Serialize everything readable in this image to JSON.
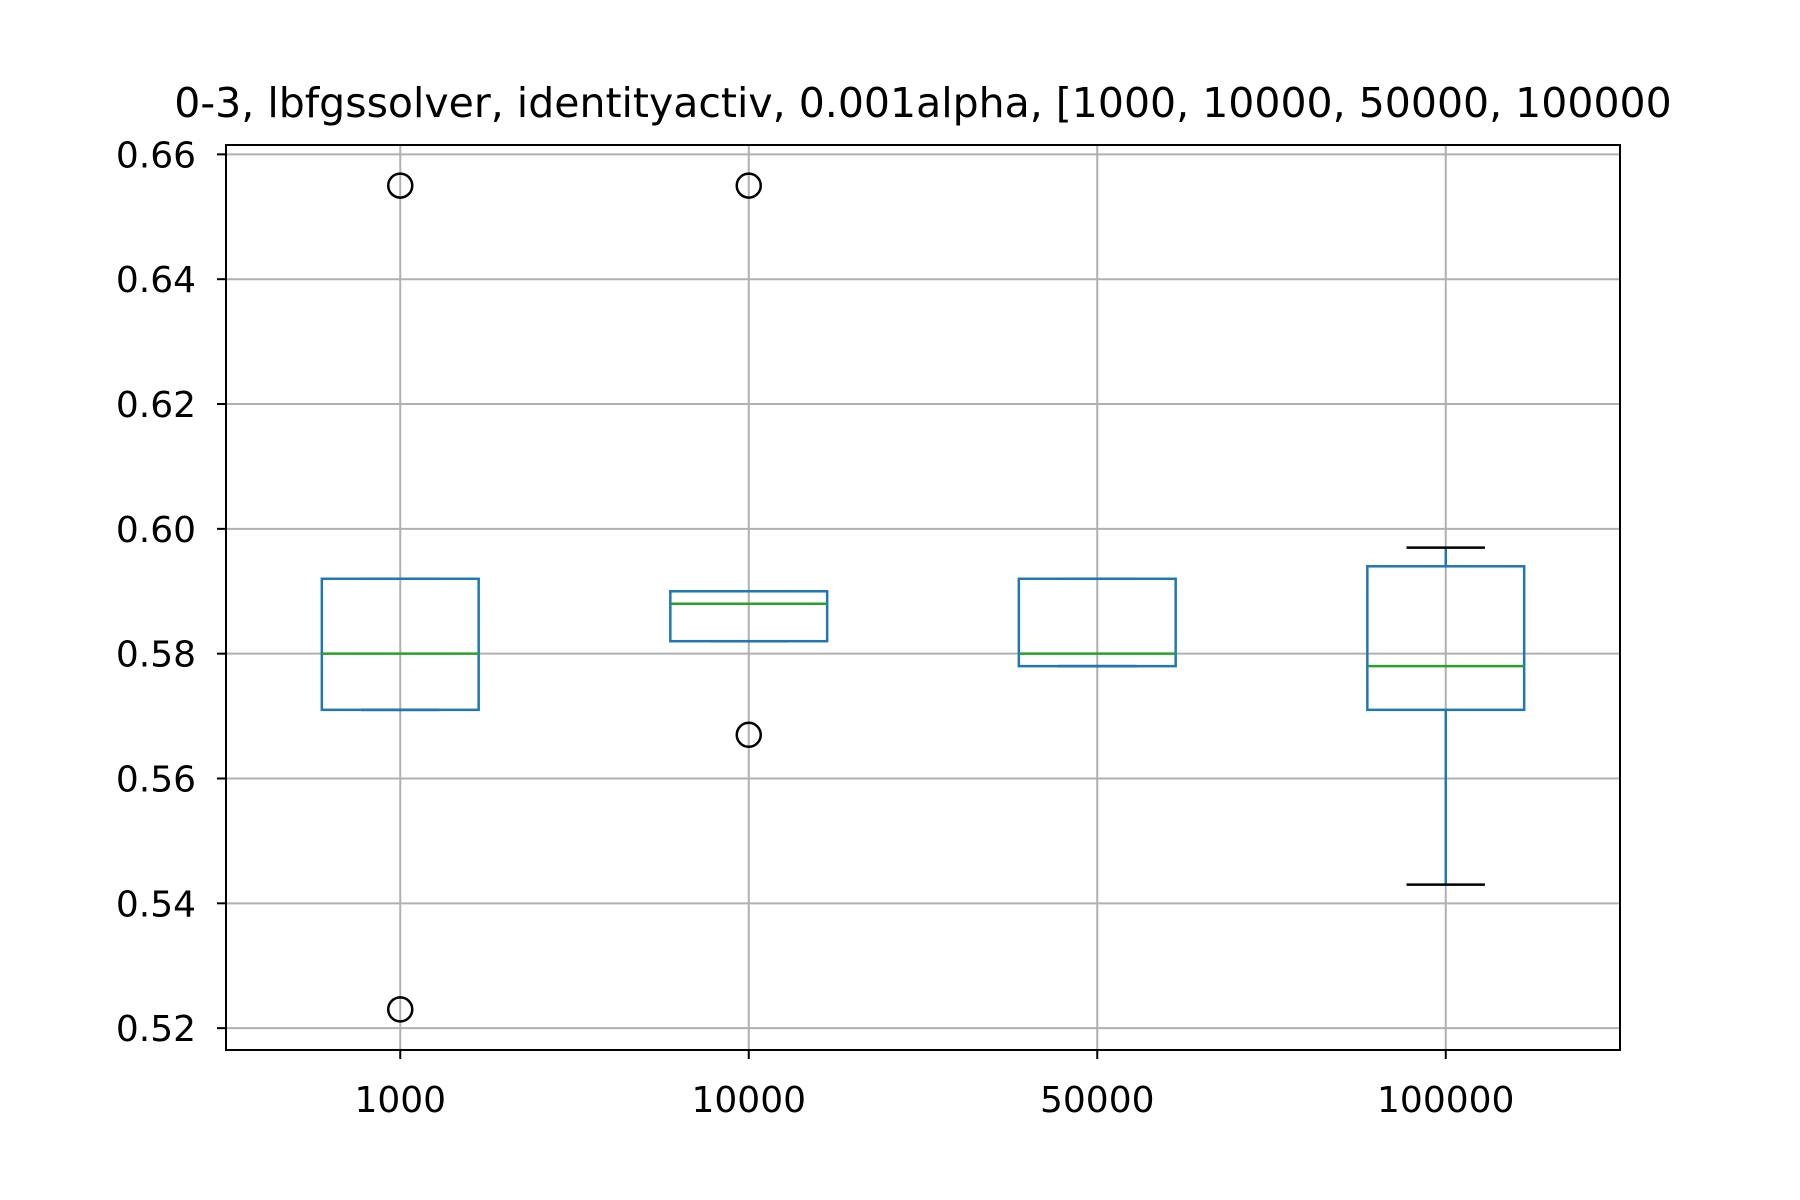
{
  "chart_data": {
    "type": "box",
    "title": "0-3, lbfgssolver, identityactiv, 0.001alpha, [1000, 10000, 50000, 100000",
    "xlabel": "",
    "ylabel": "",
    "categories": [
      "1000",
      "10000",
      "50000",
      "100000"
    ],
    "ylim": [
      0.5165,
      0.6615
    ],
    "yticks": [
      0.52,
      0.54,
      0.56,
      0.58,
      0.6,
      0.62,
      0.64,
      0.66
    ],
    "ytick_labels": [
      "0.52",
      "0.54",
      "0.56",
      "0.58",
      "0.60",
      "0.62",
      "0.64",
      "0.66"
    ],
    "grid": true,
    "boxes": [
      {
        "category": "1000",
        "q1": 0.571,
        "median": 0.58,
        "q3": 0.592,
        "whisker_low": 0.571,
        "whisker_high": 0.592,
        "fliers": [
          0.655,
          0.523
        ]
      },
      {
        "category": "10000",
        "q1": 0.582,
        "median": 0.588,
        "q3": 0.59,
        "whisker_low": 0.582,
        "whisker_high": 0.59,
        "fliers": [
          0.655,
          0.567
        ]
      },
      {
        "category": "50000",
        "q1": 0.578,
        "median": 0.58,
        "q3": 0.592,
        "whisker_low": 0.578,
        "whisker_high": 0.592,
        "fliers": []
      },
      {
        "category": "100000",
        "q1": 0.571,
        "median": 0.578,
        "q3": 0.594,
        "whisker_low": 0.543,
        "whisker_high": 0.597,
        "fliers": []
      }
    ],
    "colors": {
      "box": "#1f77b4",
      "median": "#2ca02c",
      "whisker_cap": "#000000",
      "grid": "#b0b0b0",
      "axes": "#000000"
    }
  }
}
